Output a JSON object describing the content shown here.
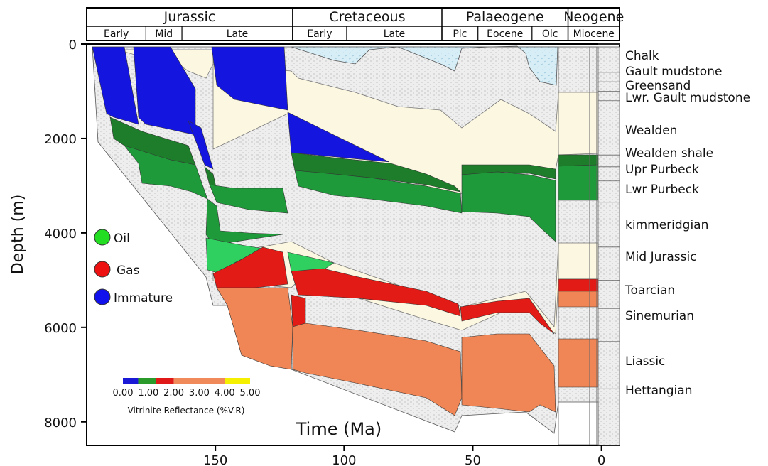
{
  "chart_data": {
    "type": "area",
    "title": "",
    "xlabel": "Time (Ma)",
    "ylabel": "Depth (m)",
    "x_reversed": true,
    "y_reversed": true,
    "xlim": [
      200,
      -7
    ],
    "ylim": [
      0,
      8500
    ],
    "x_ticks": [
      "150",
      "100",
      "50",
      "0"
    ],
    "x_tick_values": [
      150,
      100,
      50,
      0
    ],
    "y_ticks": [
      "0",
      "2000",
      "4000",
      "6000",
      "8000"
    ],
    "y_tick_values": [
      0,
      2000,
      4000,
      6000,
      8000
    ],
    "periods": [
      {
        "label": "Jurassic",
        "from": 200,
        "to": 120
      },
      {
        "label": "Cretaceous",
        "from": 120,
        "to": 62
      },
      {
        "label": "Palaeogene",
        "from": 62,
        "to": 13
      },
      {
        "label": "Neogene",
        "from": 13,
        "to": -7
      }
    ],
    "epochs": [
      {
        "label": "Early",
        "from": 200,
        "to": 177
      },
      {
        "label": "Mid",
        "from": 177,
        "to": 163
      },
      {
        "label": "Late",
        "from": 163,
        "to": 120
      },
      {
        "label": "Early",
        "from": 120,
        "to": 99
      },
      {
        "label": "Late",
        "from": 99,
        "to": 62
      },
      {
        "label": "Plc",
        "from": 62,
        "to": 48
      },
      {
        "label": "Eocene",
        "from": 48,
        "to": 27
      },
      {
        "label": "Olc",
        "from": 27,
        "to": 13
      },
      {
        "label": "Miocene",
        "from": 13,
        "to": -7
      }
    ],
    "layers": [
      {
        "name": "Chalk",
        "top_depth": 0
      },
      {
        "name": "Gault mudstone",
        "top_depth": 600
      },
      {
        "name": "Greensand",
        "top_depth": 800
      },
      {
        "name": "Lwr. Gault mudstone",
        "top_depth": 1000
      },
      {
        "name": "Wealden",
        "top_depth": 1200
      },
      {
        "name": "Wealden shale",
        "top_depth": 2350
      },
      {
        "name": "Upr Purbeck",
        "top_depth": 2600
      },
      {
        "name": "Lwr Purbeck",
        "top_depth": 2900
      },
      {
        "name": "kimmeridgian",
        "top_depth": 3350
      },
      {
        "name": "Mid Jurassic",
        "top_depth": 4300
      },
      {
        "name": "Toarcian",
        "top_depth": 5000
      },
      {
        "name": "Sinemurian",
        "top_depth": 5600
      },
      {
        "name": "Liassic",
        "top_depth": 6300
      },
      {
        "name": "Hettangian",
        "top_depth": 7300
      }
    ],
    "maturity_legend": [
      {
        "label": "Oil",
        "color": "#22dd22"
      },
      {
        "label": "Gas",
        "color": "#ee1111"
      },
      {
        "label": "Immature",
        "color": "#1111ee"
      }
    ],
    "vr_colorbar": {
      "label": "Vitrinite Reflectance (%V.R)",
      "ticks": [
        "0.00",
        "1.00",
        "2.00",
        "3.00",
        "4.00",
        "5.00"
      ],
      "tick_values": [
        0,
        1,
        2,
        3,
        4,
        5
      ],
      "segments": [
        {
          "from": 0.0,
          "to": 0.6,
          "color": "#1a1ad6"
        },
        {
          "from": 0.6,
          "to": 1.3,
          "color": "#2a9a2a"
        },
        {
          "from": 1.3,
          "to": 2.0,
          "color": "#e01818"
        },
        {
          "from": 2.0,
          "to": 4.0,
          "color": "#f08a5a"
        },
        {
          "from": 4.0,
          "to": 5.0,
          "color": "#f4f000"
        }
      ]
    },
    "colors": {
      "chalk": "#d8eef7",
      "sediment": "#fbf7e1",
      "shale": "#ececec",
      "immature": "#1515e0",
      "oil_dark": "#1e7d2b",
      "oil": "#1f9a3a",
      "oil_light": "#2fd060",
      "gas": "#e21b16",
      "overmature": "#f08655"
    }
  }
}
